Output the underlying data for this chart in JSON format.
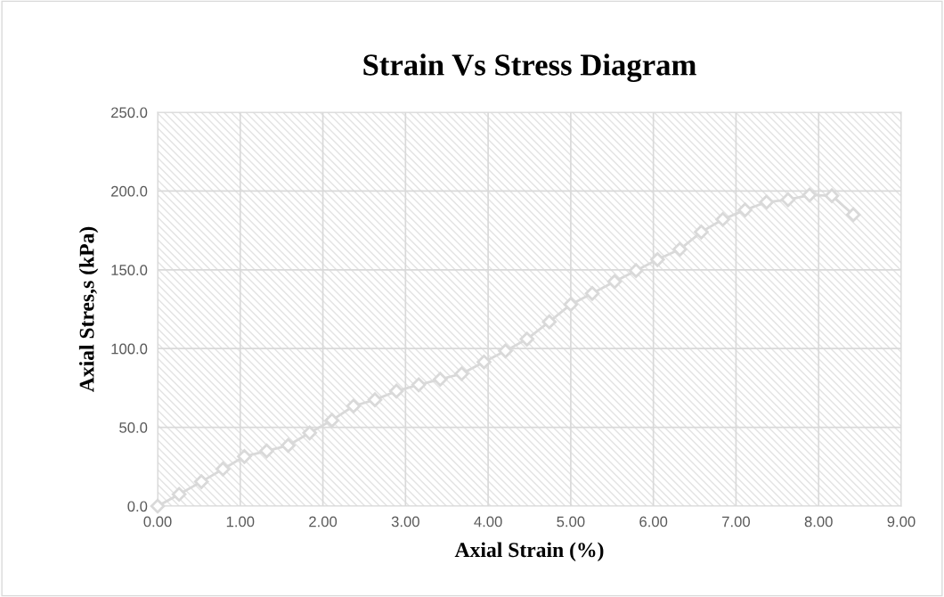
{
  "chart_data": {
    "type": "line",
    "title": "Strain Vs Stress Diagram",
    "xlabel": "Axial Strain (%)",
    "ylabel": "Axial Stres,s (kPa)",
    "x": [
      0,
      0.26,
      0.53,
      0.79,
      1.05,
      1.32,
      1.58,
      1.84,
      2.11,
      2.37,
      2.63,
      2.89,
      3.16,
      3.42,
      3.68,
      3.95,
      4.21,
      4.47,
      4.74,
      5.0,
      5.26,
      5.53,
      5.79,
      6.05,
      6.32,
      6.58,
      6.84,
      7.11,
      7.37,
      7.63,
      7.89,
      8.16,
      8.42
    ],
    "series": [
      {
        "color": "#d9d9d9",
        "values": [
          0,
          7.5,
          15.5,
          23.5,
          31.5,
          35,
          38.5,
          46.5,
          54.5,
          63.5,
          67.5,
          73,
          77,
          80.5,
          84,
          91.5,
          98.5,
          106,
          117,
          128,
          135,
          142.5,
          149.5,
          156.5,
          163,
          174,
          182,
          188,
          193,
          194.5,
          197.5,
          197,
          185
        ]
      }
    ],
    "xlim": [
      0,
      9
    ],
    "xticks": [
      {
        "value": 0,
        "label": "0.00"
      },
      {
        "value": 1,
        "label": "1.00"
      },
      {
        "value": 2,
        "label": "2.00"
      },
      {
        "value": 3,
        "label": "3.00"
      },
      {
        "value": 4,
        "label": "4.00"
      },
      {
        "value": 5,
        "label": "5.00"
      },
      {
        "value": 6,
        "label": "6.00"
      },
      {
        "value": 7,
        "label": "7.00"
      },
      {
        "value": 8,
        "label": "8.00"
      },
      {
        "value": 9,
        "label": "9.00"
      }
    ],
    "ylim": [
      0,
      250
    ],
    "yticks": [
      {
        "value": 0,
        "label": "0.0"
      },
      {
        "value": 50,
        "label": "50.0"
      },
      {
        "value": 100,
        "label": "100.0"
      },
      {
        "value": 150,
        "label": "150.0"
      },
      {
        "value": 200,
        "label": "200.0"
      },
      {
        "value": 250,
        "label": "250.0"
      }
    ],
    "grid": true,
    "marker": "diamond",
    "line_style": "solid"
  }
}
